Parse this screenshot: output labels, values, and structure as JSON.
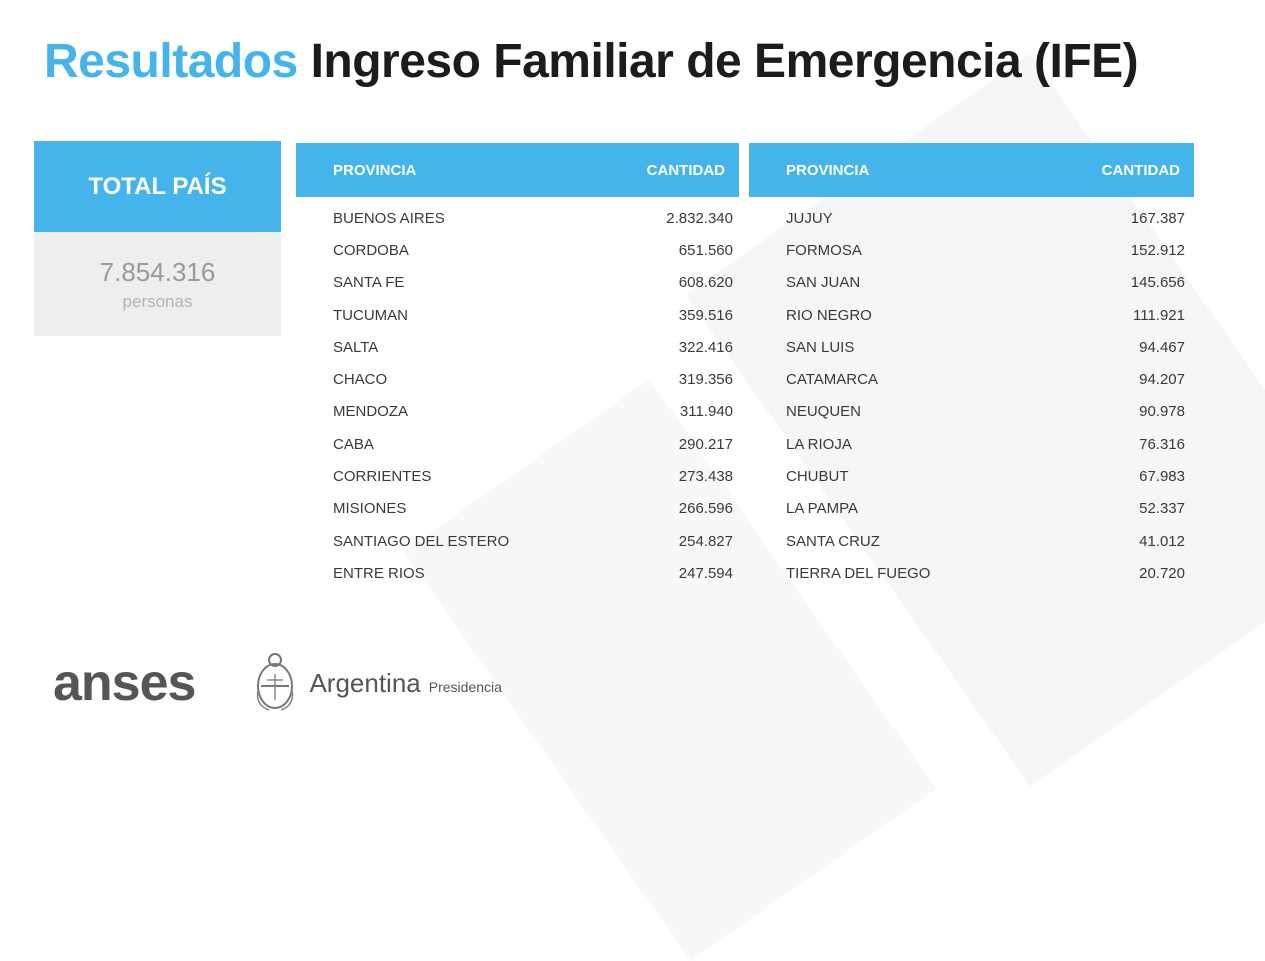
{
  "title": {
    "accent": "Resultados",
    "main": "Ingreso Familiar de Emergencia (IFE)"
  },
  "total": {
    "label": "TOTAL PAÍS",
    "value": "7.854.316",
    "unit": "personas"
  },
  "table_left": {
    "headers": {
      "province": "PROVINCIA",
      "amount": "CANTIDAD"
    },
    "rows": [
      {
        "province": "BUENOS AIRES",
        "amount": "2.832.340"
      },
      {
        "province": "CORDOBA",
        "amount": "651.560"
      },
      {
        "province": "SANTA FE",
        "amount": "608.620"
      },
      {
        "province": "TUCUMAN",
        "amount": "359.516"
      },
      {
        "province": "SALTA",
        "amount": "322.416"
      },
      {
        "province": "CHACO",
        "amount": "319.356"
      },
      {
        "province": "MENDOZA",
        "amount": "311.940"
      },
      {
        "province": "CABA",
        "amount": "290.217"
      },
      {
        "province": "CORRIENTES",
        "amount": "273.438"
      },
      {
        "province": "MISIONES",
        "amount": "266.596"
      },
      {
        "province": "SANTIAGO DEL ESTERO",
        "amount": "254.827"
      },
      {
        "province": "ENTRE RIOS",
        "amount": "247.594"
      }
    ]
  },
  "table_right": {
    "headers": {
      "province": "PROVINCIA",
      "amount": "CANTIDAD"
    },
    "rows": [
      {
        "province": "JUJUY",
        "amount": "167.387"
      },
      {
        "province": "FORMOSA",
        "amount": "152.912"
      },
      {
        "province": "SAN JUAN",
        "amount": "145.656"
      },
      {
        "province": "RIO NEGRO",
        "amount": "111.921"
      },
      {
        "province": "SAN LUIS",
        "amount": "94.467"
      },
      {
        "province": "CATAMARCA",
        "amount": "94.207"
      },
      {
        "province": "NEUQUEN",
        "amount": "90.978"
      },
      {
        "province": "LA RIOJA",
        "amount": "76.316"
      },
      {
        "province": "CHUBUT",
        "amount": "67.983"
      },
      {
        "province": "LA PAMPA",
        "amount": "52.337"
      },
      {
        "province": "SANTA CRUZ",
        "amount": "41.012"
      },
      {
        "province": "TIERRA DEL FUEGO",
        "amount": "20.720"
      }
    ]
  },
  "footer": {
    "logo": "anses",
    "country": "Argentina",
    "subtitle": "Presidencia",
    "seal_icon": "coat-of-arms-icon"
  },
  "colors": {
    "accent": "#45b4ea",
    "text": "#1c1c1c",
    "logo": "#555555",
    "panel": "#eeeeee"
  }
}
